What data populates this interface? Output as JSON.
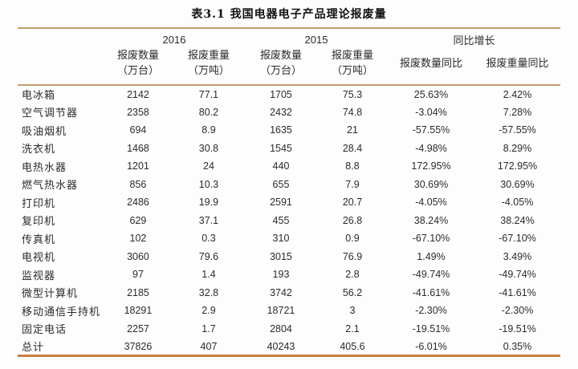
{
  "title": "表3.1 我国电器电子产品理论报废量",
  "colors": {
    "rule_light": "#C49A6B",
    "rule_strong": "#C8803E",
    "text_color": "#2b2b2b",
    "page_bg": "#fdfdfd"
  },
  "table": {
    "col_groups": [
      {
        "label": "2016"
      },
      {
        "label": "2015"
      },
      {
        "label": "同比增长"
      }
    ],
    "sub_headers": [
      {
        "line1": "报废数量",
        "line2": "（万台）"
      },
      {
        "line1": "报废重量",
        "line2": "（万吨）"
      },
      {
        "line1": "报废数量",
        "line2": "（万台）"
      },
      {
        "line1": "报废重量",
        "line2": "（万吨）"
      },
      {
        "line1": "报废数量同比"
      },
      {
        "line1": "报废重量同比"
      }
    ],
    "rows": [
      {
        "name": "电冰箱",
        "q2016": "2142",
        "w2016": "77.1",
        "q2015": "1705",
        "w2015": "75.3",
        "qyoy": "25.63%",
        "wyoy": "2.42%"
      },
      {
        "name": "空气调节器",
        "q2016": "2358",
        "w2016": "80.2",
        "q2015": "2432",
        "w2015": "74.8",
        "qyoy": "-3.04%",
        "wyoy": "7.28%"
      },
      {
        "name": "吸油烟机",
        "q2016": "694",
        "w2016": "8.9",
        "q2015": "1635",
        "w2015": "21",
        "qyoy": "-57.55%",
        "wyoy": "-57.55%"
      },
      {
        "name": "洗衣机",
        "q2016": "1468",
        "w2016": "30.8",
        "q2015": "1545",
        "w2015": "28.4",
        "qyoy": "-4.98%",
        "wyoy": "8.29%"
      },
      {
        "name": "电热水器",
        "q2016": "1201",
        "w2016": "24",
        "q2015": "440",
        "w2015": "8.8",
        "qyoy": "172.95%",
        "wyoy": "172.95%"
      },
      {
        "name": "燃气热水器",
        "q2016": "856",
        "w2016": "10.3",
        "q2015": "655",
        "w2015": "7.9",
        "qyoy": "30.69%",
        "wyoy": "30.69%"
      },
      {
        "name": "打印机",
        "q2016": "2486",
        "w2016": "19.9",
        "q2015": "2591",
        "w2015": "20.7",
        "qyoy": "-4.05%",
        "wyoy": "-4.05%"
      },
      {
        "name": "复印机",
        "q2016": "629",
        "w2016": "37.1",
        "q2015": "455",
        "w2015": "26.8",
        "qyoy": "38.24%",
        "wyoy": "38.24%"
      },
      {
        "name": "传真机",
        "q2016": "102",
        "w2016": "0.3",
        "q2015": "310",
        "w2015": "0.9",
        "qyoy": "-67.10%",
        "wyoy": "-67.10%"
      },
      {
        "name": "电视机",
        "q2016": "3060",
        "w2016": "79.6",
        "q2015": "3015",
        "w2015": "76.9",
        "qyoy": "1.49%",
        "wyoy": "3.49%"
      },
      {
        "name": "监视器",
        "q2016": "97",
        "w2016": "1.4",
        "q2015": "193",
        "w2015": "2.8",
        "qyoy": "-49.74%",
        "wyoy": "-49.74%"
      },
      {
        "name": "微型计算机",
        "q2016": "2185",
        "w2016": "32.8",
        "q2015": "3742",
        "w2015": "56.2",
        "qyoy": "-41.61%",
        "wyoy": "-41.61%"
      },
      {
        "name": "移动通信手持机",
        "q2016": "18291",
        "w2016": "2.9",
        "q2015": "18721",
        "w2015": "3",
        "qyoy": "-2.30%",
        "wyoy": "-2.30%"
      },
      {
        "name": "固定电话",
        "q2016": "2257",
        "w2016": "1.7",
        "q2015": "2804",
        "w2015": "2.1",
        "qyoy": "-19.51%",
        "wyoy": "-19.51%"
      },
      {
        "name": "总计",
        "q2016": "37826",
        "w2016": "407",
        "q2015": "40243",
        "w2015": "405.6",
        "qyoy": "-6.01%",
        "wyoy": "0.35%"
      }
    ]
  }
}
